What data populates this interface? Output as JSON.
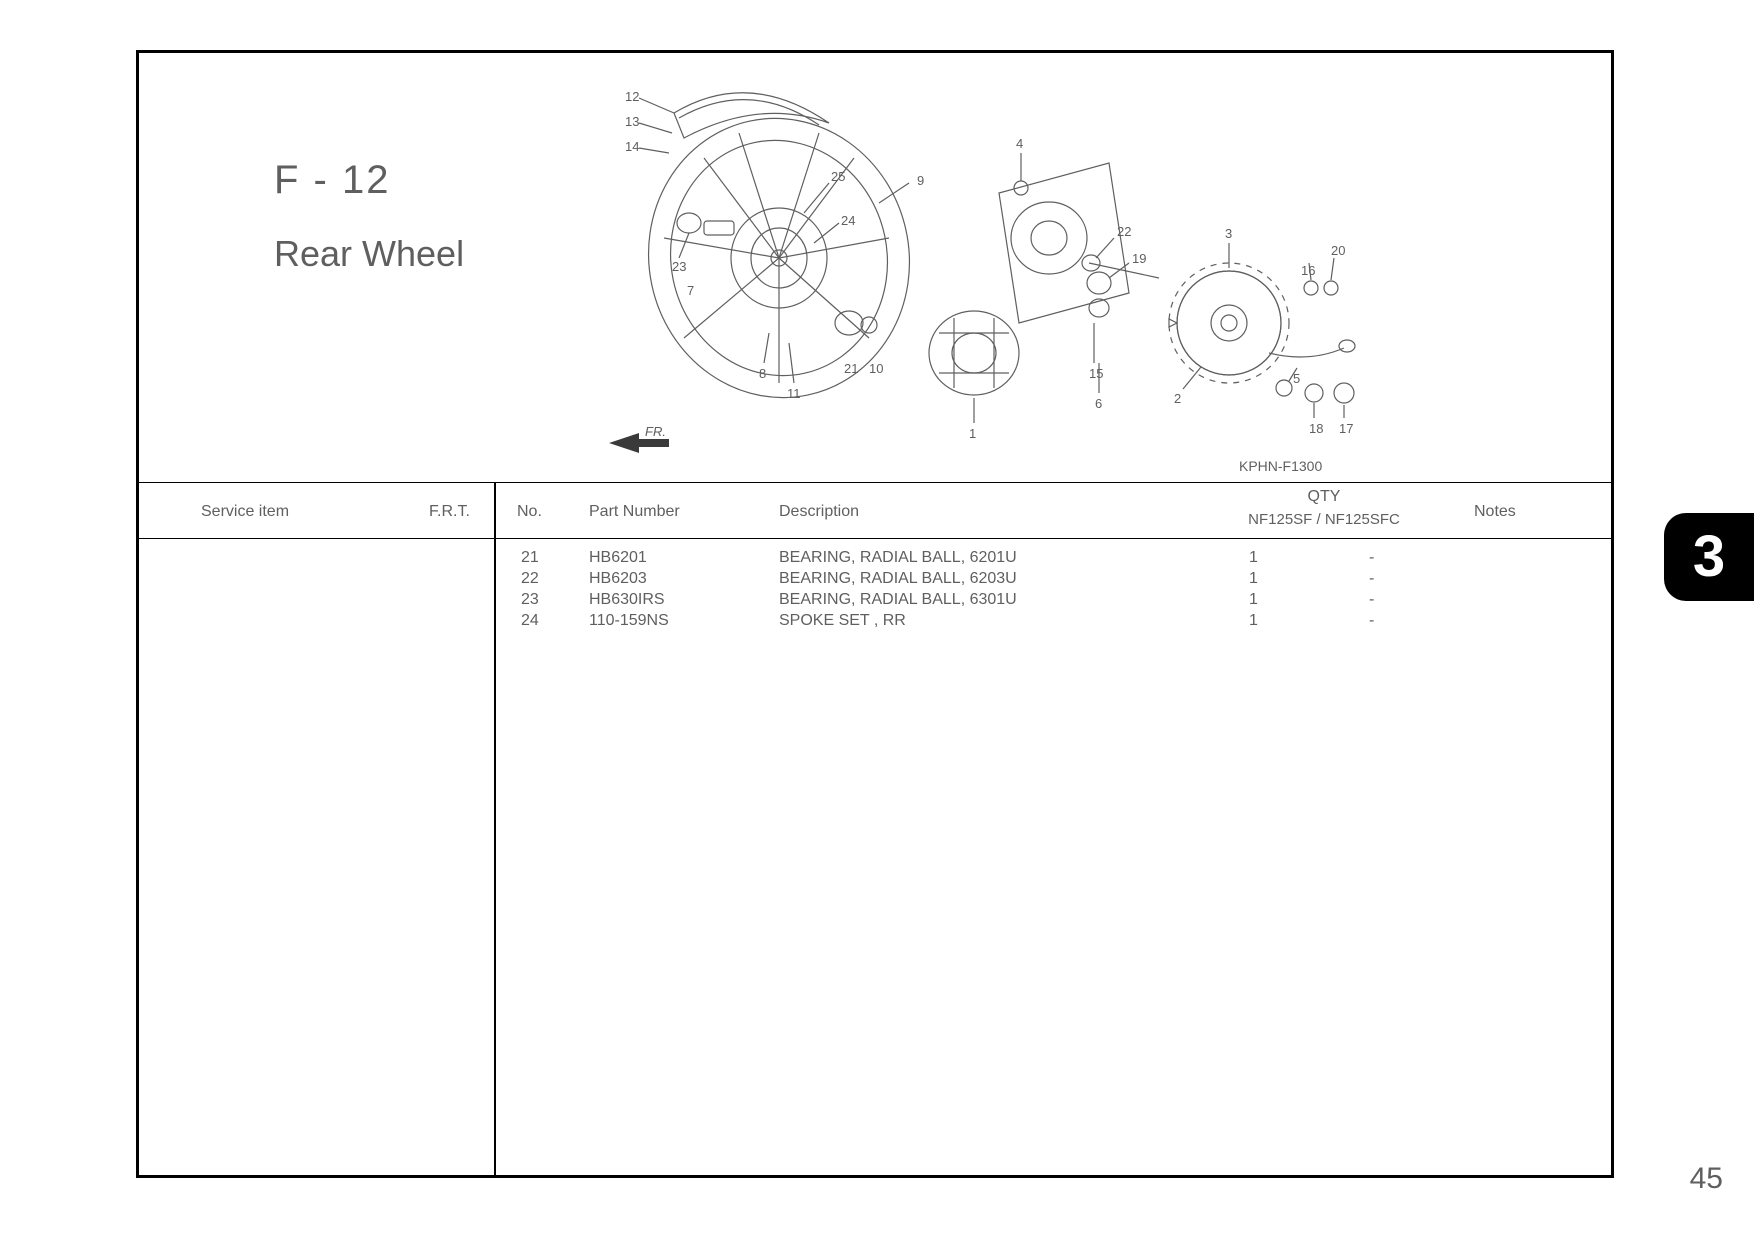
{
  "title": {
    "code": "F - 12",
    "name": "Rear Wheel"
  },
  "diagram": {
    "code": "KPHN-F1300",
    "front_label": "FR.",
    "callouts": [
      "1",
      "2",
      "3",
      "4",
      "5",
      "6",
      "7",
      "8",
      "9",
      "10",
      "11",
      "12",
      "13",
      "14",
      "15",
      "16",
      "17",
      "18",
      "19",
      "20",
      "21",
      "22",
      "23",
      "24",
      "25"
    ]
  },
  "headers": {
    "service_item": "Service item",
    "frt": "F.R.T.",
    "no": "No.",
    "part_number": "Part Number",
    "description": "Description",
    "qty": "QTY",
    "qty_sub": "NF125SF / NF125SFC",
    "notes": "Notes"
  },
  "rows": [
    {
      "no": "21",
      "pn": "HB6201",
      "desc": "BEARING, RADIAL BALL, 6201U",
      "q1": "1",
      "q2": "-"
    },
    {
      "no": "22",
      "pn": "HB6203",
      "desc": "BEARING, RADIAL BALL, 6203U",
      "q1": "1",
      "q2": "-"
    },
    {
      "no": "23",
      "pn": "HB630IRS",
      "desc": "BEARING, RADIAL BALL, 6301U",
      "q1": "1",
      "q2": "-"
    },
    {
      "no": "24",
      "pn": "110-159NS",
      "desc": "SPOKE SET , RR",
      "q1": "1",
      "q2": "-"
    }
  ],
  "page_number": "45",
  "section_tab": "3",
  "colors": {
    "border": "#000000",
    "text": "#5f5f5f",
    "background": "#ffffff",
    "tab_bg": "#000000",
    "tab_text": "#ffffff"
  }
}
